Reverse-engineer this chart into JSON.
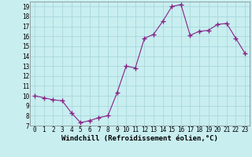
{
  "x": [
    0,
    1,
    2,
    3,
    4,
    5,
    6,
    7,
    8,
    9,
    10,
    11,
    12,
    13,
    14,
    15,
    16,
    17,
    18,
    19,
    20,
    21,
    22,
    23
  ],
  "y": [
    10,
    9.8,
    9.6,
    9.5,
    8.3,
    7.3,
    7.5,
    7.8,
    8.0,
    10.3,
    13.0,
    12.8,
    15.8,
    16.2,
    17.5,
    19.0,
    19.2,
    16.1,
    16.5,
    16.6,
    17.2,
    17.3,
    15.8,
    14.3
  ],
  "line_color": "#882288",
  "marker_color": "#882288",
  "bg_color": "#c8eef0",
  "grid_color": "#a8d8dc",
  "xlabel": "Windchill (Refroidissement éolien,°C)",
  "ylim": [
    7,
    19.5
  ],
  "xlim": [
    -0.5,
    23.5
  ],
  "yticks": [
    7,
    8,
    9,
    10,
    11,
    12,
    13,
    14,
    15,
    16,
    17,
    18,
    19
  ],
  "xticks": [
    0,
    1,
    2,
    3,
    4,
    5,
    6,
    7,
    8,
    9,
    10,
    11,
    12,
    13,
    14,
    15,
    16,
    17,
    18,
    19,
    20,
    21,
    22,
    23
  ],
  "tick_fontsize": 5.5,
  "xlabel_fontsize": 6.5
}
